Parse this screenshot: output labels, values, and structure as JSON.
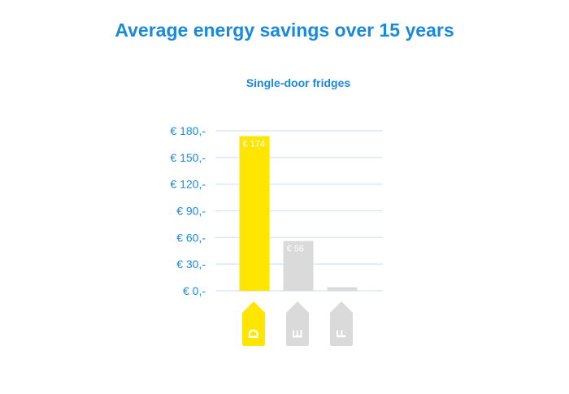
{
  "title": "Average energy savings over 15 years",
  "subtitle": "Single-door fridges",
  "colors": {
    "title": "#1a8ad8",
    "axis_text": "#1a8ad8",
    "grid": "#dce8f3",
    "highlight": "#ffe600",
    "muted": "#dadada",
    "bar_label": "#ffffff"
  },
  "chart_data": {
    "type": "bar",
    "title": "Average energy savings over 15 years",
    "subtitle": "Single-door fridges",
    "categories": [
      "D",
      "E",
      "F"
    ],
    "values": [
      174,
      56,
      4
    ],
    "value_labels": [
      "€ 174",
      "€ 56",
      ""
    ],
    "highlight": [
      "D"
    ],
    "ylim": [
      0,
      180
    ],
    "y_ticks": [
      0,
      30,
      60,
      90,
      120,
      150,
      180
    ],
    "y_tick_labels": [
      "€ 0,-",
      "€ 30,-",
      "€ 60,-",
      "€ 90,-",
      "€ 120,-",
      "€ 150,-",
      "€ 180,-"
    ],
    "grid": true,
    "legend": "none"
  }
}
